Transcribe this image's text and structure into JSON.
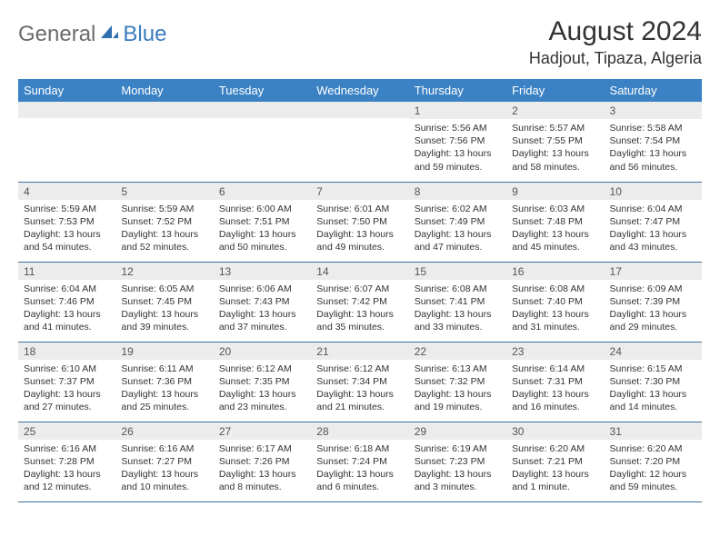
{
  "logo": {
    "part1": "General",
    "part2": "Blue"
  },
  "title": "August 2024",
  "location": "Hadjout, Tipaza, Algeria",
  "colors": {
    "header_bg": "#3b82c4",
    "header_text": "#ffffff",
    "daynum_bg": "#ececec",
    "border": "#3b6fa0",
    "logo_gray": "#6b6b6b",
    "logo_blue": "#3b7bbf"
  },
  "weekdays": [
    "Sunday",
    "Monday",
    "Tuesday",
    "Wednesday",
    "Thursday",
    "Friday",
    "Saturday"
  ],
  "weeks": [
    [
      null,
      null,
      null,
      null,
      {
        "n": "1",
        "sr": "Sunrise: 5:56 AM",
        "ss": "Sunset: 7:56 PM",
        "dl": "Daylight: 13 hours and 59 minutes."
      },
      {
        "n": "2",
        "sr": "Sunrise: 5:57 AM",
        "ss": "Sunset: 7:55 PM",
        "dl": "Daylight: 13 hours and 58 minutes."
      },
      {
        "n": "3",
        "sr": "Sunrise: 5:58 AM",
        "ss": "Sunset: 7:54 PM",
        "dl": "Daylight: 13 hours and 56 minutes."
      }
    ],
    [
      {
        "n": "4",
        "sr": "Sunrise: 5:59 AM",
        "ss": "Sunset: 7:53 PM",
        "dl": "Daylight: 13 hours and 54 minutes."
      },
      {
        "n": "5",
        "sr": "Sunrise: 5:59 AM",
        "ss": "Sunset: 7:52 PM",
        "dl": "Daylight: 13 hours and 52 minutes."
      },
      {
        "n": "6",
        "sr": "Sunrise: 6:00 AM",
        "ss": "Sunset: 7:51 PM",
        "dl": "Daylight: 13 hours and 50 minutes."
      },
      {
        "n": "7",
        "sr": "Sunrise: 6:01 AM",
        "ss": "Sunset: 7:50 PM",
        "dl": "Daylight: 13 hours and 49 minutes."
      },
      {
        "n": "8",
        "sr": "Sunrise: 6:02 AM",
        "ss": "Sunset: 7:49 PM",
        "dl": "Daylight: 13 hours and 47 minutes."
      },
      {
        "n": "9",
        "sr": "Sunrise: 6:03 AM",
        "ss": "Sunset: 7:48 PM",
        "dl": "Daylight: 13 hours and 45 minutes."
      },
      {
        "n": "10",
        "sr": "Sunrise: 6:04 AM",
        "ss": "Sunset: 7:47 PM",
        "dl": "Daylight: 13 hours and 43 minutes."
      }
    ],
    [
      {
        "n": "11",
        "sr": "Sunrise: 6:04 AM",
        "ss": "Sunset: 7:46 PM",
        "dl": "Daylight: 13 hours and 41 minutes."
      },
      {
        "n": "12",
        "sr": "Sunrise: 6:05 AM",
        "ss": "Sunset: 7:45 PM",
        "dl": "Daylight: 13 hours and 39 minutes."
      },
      {
        "n": "13",
        "sr": "Sunrise: 6:06 AM",
        "ss": "Sunset: 7:43 PM",
        "dl": "Daylight: 13 hours and 37 minutes."
      },
      {
        "n": "14",
        "sr": "Sunrise: 6:07 AM",
        "ss": "Sunset: 7:42 PM",
        "dl": "Daylight: 13 hours and 35 minutes."
      },
      {
        "n": "15",
        "sr": "Sunrise: 6:08 AM",
        "ss": "Sunset: 7:41 PM",
        "dl": "Daylight: 13 hours and 33 minutes."
      },
      {
        "n": "16",
        "sr": "Sunrise: 6:08 AM",
        "ss": "Sunset: 7:40 PM",
        "dl": "Daylight: 13 hours and 31 minutes."
      },
      {
        "n": "17",
        "sr": "Sunrise: 6:09 AM",
        "ss": "Sunset: 7:39 PM",
        "dl": "Daylight: 13 hours and 29 minutes."
      }
    ],
    [
      {
        "n": "18",
        "sr": "Sunrise: 6:10 AM",
        "ss": "Sunset: 7:37 PM",
        "dl": "Daylight: 13 hours and 27 minutes."
      },
      {
        "n": "19",
        "sr": "Sunrise: 6:11 AM",
        "ss": "Sunset: 7:36 PM",
        "dl": "Daylight: 13 hours and 25 minutes."
      },
      {
        "n": "20",
        "sr": "Sunrise: 6:12 AM",
        "ss": "Sunset: 7:35 PM",
        "dl": "Daylight: 13 hours and 23 minutes."
      },
      {
        "n": "21",
        "sr": "Sunrise: 6:12 AM",
        "ss": "Sunset: 7:34 PM",
        "dl": "Daylight: 13 hours and 21 minutes."
      },
      {
        "n": "22",
        "sr": "Sunrise: 6:13 AM",
        "ss": "Sunset: 7:32 PM",
        "dl": "Daylight: 13 hours and 19 minutes."
      },
      {
        "n": "23",
        "sr": "Sunrise: 6:14 AM",
        "ss": "Sunset: 7:31 PM",
        "dl": "Daylight: 13 hours and 16 minutes."
      },
      {
        "n": "24",
        "sr": "Sunrise: 6:15 AM",
        "ss": "Sunset: 7:30 PM",
        "dl": "Daylight: 13 hours and 14 minutes."
      }
    ],
    [
      {
        "n": "25",
        "sr": "Sunrise: 6:16 AM",
        "ss": "Sunset: 7:28 PM",
        "dl": "Daylight: 13 hours and 12 minutes."
      },
      {
        "n": "26",
        "sr": "Sunrise: 6:16 AM",
        "ss": "Sunset: 7:27 PM",
        "dl": "Daylight: 13 hours and 10 minutes."
      },
      {
        "n": "27",
        "sr": "Sunrise: 6:17 AM",
        "ss": "Sunset: 7:26 PM",
        "dl": "Daylight: 13 hours and 8 minutes."
      },
      {
        "n": "28",
        "sr": "Sunrise: 6:18 AM",
        "ss": "Sunset: 7:24 PM",
        "dl": "Daylight: 13 hours and 6 minutes."
      },
      {
        "n": "29",
        "sr": "Sunrise: 6:19 AM",
        "ss": "Sunset: 7:23 PM",
        "dl": "Daylight: 13 hours and 3 minutes."
      },
      {
        "n": "30",
        "sr": "Sunrise: 6:20 AM",
        "ss": "Sunset: 7:21 PM",
        "dl": "Daylight: 13 hours and 1 minute."
      },
      {
        "n": "31",
        "sr": "Sunrise: 6:20 AM",
        "ss": "Sunset: 7:20 PM",
        "dl": "Daylight: 12 hours and 59 minutes."
      }
    ]
  ]
}
